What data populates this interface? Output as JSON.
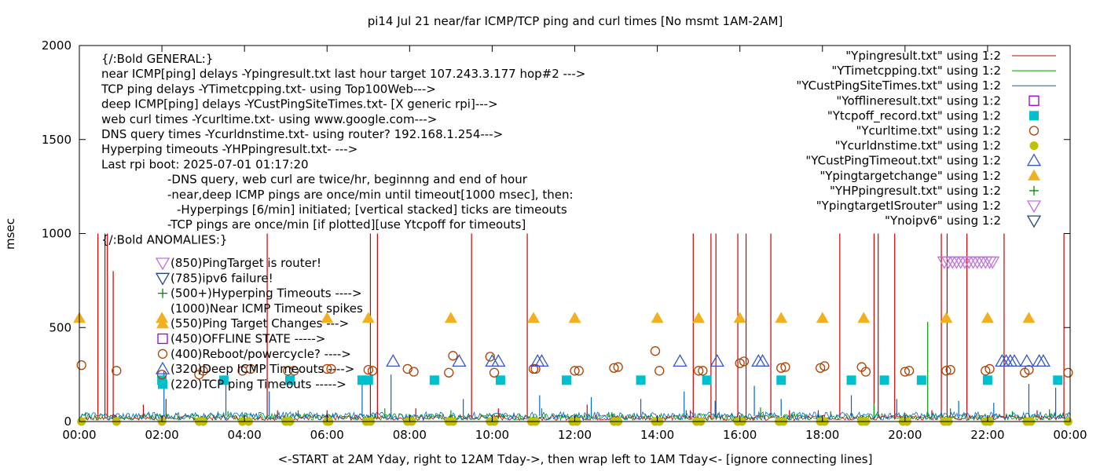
{
  "chart_data": {
    "type": "line",
    "title": "pi14 Jul 21  near/far ICMP/TCP ping and curl times [No msmt 1AM-2AM]",
    "xlabel": "<-START at 2AM Yday, right to 12AM Tday->, then wrap left to 1AM Tday<- [ignore connecting lines]",
    "ylabel": "msec",
    "xlim": [
      0,
      24
    ],
    "ylim": [
      0,
      2000
    ],
    "xticks": [
      "00:00",
      "02:00",
      "04:00",
      "06:00",
      "08:00",
      "10:00",
      "12:00",
      "14:00",
      "16:00",
      "18:00",
      "20:00",
      "22:00",
      "00:00"
    ],
    "yticks": [
      0,
      500,
      1000,
      1500,
      2000
    ],
    "grid": false,
    "legend_position": "top-right",
    "legend": [
      {
        "label": "\"Ypingresult.txt\" using 1:2",
        "marker": "line",
        "color": "#cc0000"
      },
      {
        "label": "\"YTimetcpping.txt\" using 1:2",
        "marker": "line",
        "color": "#009900"
      },
      {
        "label": "\"YCustPingSiteTimes.txt\" using 1:2",
        "marker": "line",
        "color": "#0066cc"
      },
      {
        "label": "\"Yofflineresult.txt\" using 1:2",
        "marker": "open-square",
        "color": "#9400d3"
      },
      {
        "label": "\"Ytcpoff_record.txt\" using 1:2",
        "marker": "filled-square",
        "color": "#00c0d0"
      },
      {
        "label": "\"Ycurltime.txt\" using 1:2",
        "marker": "open-circle",
        "color": "#b04000"
      },
      {
        "label": "\"Ycurldnstime.txt\" using 1:2",
        "marker": "filled-circle",
        "color": "#c0c000"
      },
      {
        "label": "\"YCustPingTimeout.txt\" using 1:2",
        "marker": "open-triangle",
        "color": "#3355cc"
      },
      {
        "label": "\"Ypingtargetchange\" using 1:2",
        "marker": "filled-triangle",
        "color": "#f0b020"
      },
      {
        "label": "\"YHPpingresult.txt\" using 1:2",
        "marker": "plus",
        "color": "#008800"
      },
      {
        "label": "\"YpingtargetISrouter\" using 1:2",
        "marker": "open-triangle-down",
        "color": "#c070e0"
      },
      {
        "label": "\"Ynoipv6\" using 1:2",
        "marker": "open-triangle-down",
        "color": "#224488"
      }
    ],
    "annotation_lines": [
      "{/:Bold GENERAL:}",
      "near ICMP[ping] delays -Ypingresult.txt last hour target 107.243.3.177 hop#2 --->",
      "TCP ping delays -YTimetcpping.txt- using Top100Web--->",
      "deep ICMP[ping] delays -YCustPingSiteTimes.txt- [X generic rpi]--->",
      "web curl times -Ycurltime.txt- using www.google.com--->",
      "DNS query times -Ycurldnstime.txt- using router? 192.168.1.254--->",
      "Hyperping timeouts -YHPpingresult.txt- --->",
      "Last rpi boot: 2025-07-01 01:17:20",
      "-DNS query, web curl are twice/hr, beginnng and end of hour",
      "-near,deep ICMP pings are once/min until timeout[1000 msec], then:",
      "-Hyperpings [6/min] initiated; [vertical stacked] ticks are timeouts",
      "-TCP pings are once/min [if plotted][use Ytcpoff for timeouts]",
      "{/:Bold ANOMALIES:}"
    ],
    "anomaly_key": [
      {
        "label": "(850)PingTarget is router!",
        "marker": "open-triangle-down",
        "color": "#c070e0"
      },
      {
        "label": "(785)ipv6 failure!",
        "marker": "open-triangle-down",
        "color": "#224488"
      },
      {
        "label": "(500+)Hyperping Timeouts ---->",
        "marker": "plus",
        "color": "#008800"
      },
      {
        "label": "(1000)Near ICMP Timeout spikes",
        "marker": "none",
        "color": "#000000"
      },
      {
        "label": "(550)Ping Target Changes --->",
        "marker": "filled-triangle",
        "color": "#f0b020"
      },
      {
        "label": "(450)OFFLINE STATE ----->",
        "marker": "open-square",
        "color": "#9400d3"
      },
      {
        "label": "(400)Reboot/powercycle? ---->",
        "marker": "open-circle",
        "color": "#b04000"
      },
      {
        "label": "(320)Deep ICMP Timeouts ---->",
        "marker": "open-triangle",
        "color": "#3355cc"
      },
      {
        "label": "(220)TCP ping Timeouts ----->",
        "marker": "filled-square",
        "color": "#00c0d0"
      }
    ],
    "series": [
      {
        "name": "\"Ypingresult.txt\" using 1:2",
        "type": "spikes",
        "color": "#cc0000",
        "baseline": 20,
        "spikes": [
          [
            0.45,
            1000
          ],
          [
            0.62,
            1000
          ],
          [
            0.68,
            1000
          ],
          [
            0.82,
            800
          ],
          [
            1.55,
            90
          ],
          [
            2.1,
            120
          ],
          [
            4.55,
            1000
          ],
          [
            4.8,
            60
          ],
          [
            6.0,
            60
          ],
          [
            7.05,
            1000
          ],
          [
            7.22,
            1000
          ],
          [
            8.15,
            70
          ],
          [
            9.5,
            1000
          ],
          [
            10.15,
            70
          ],
          [
            10.85,
            1000
          ],
          [
            12.3,
            90
          ],
          [
            14.8,
            60
          ],
          [
            14.87,
            1000
          ],
          [
            15.3,
            1000
          ],
          [
            15.42,
            1000
          ],
          [
            15.95,
            1000
          ],
          [
            16.15,
            1000
          ],
          [
            16.75,
            1000
          ],
          [
            17.2,
            60
          ],
          [
            17.9,
            60
          ],
          [
            18.42,
            1000
          ],
          [
            19.25,
            1000
          ],
          [
            19.35,
            1000
          ],
          [
            19.75,
            1000
          ],
          [
            20.65,
            60
          ],
          [
            20.88,
            1000
          ],
          [
            21.02,
            1000
          ],
          [
            21.5,
            1000
          ],
          [
            22.4,
            1000
          ],
          [
            23.2,
            60
          ],
          [
            23.85,
            1000
          ]
        ]
      },
      {
        "name": "\"YTimetcpping.txt\" using 1:2",
        "type": "spikes",
        "color": "#009900",
        "baseline": 25,
        "spikes": [
          [
            0.15,
            50
          ],
          [
            2.1,
            80
          ],
          [
            3.6,
            55
          ],
          [
            5.3,
            60
          ],
          [
            7.4,
            70
          ],
          [
            9.0,
            60
          ],
          [
            11.2,
            70
          ],
          [
            12.9,
            50
          ],
          [
            14.7,
            60
          ],
          [
            16.5,
            75
          ],
          [
            18.2,
            55
          ],
          [
            19.25,
            95
          ],
          [
            20.55,
            530
          ],
          [
            21.1,
            70
          ],
          [
            22.6,
            55
          ],
          [
            23.5,
            65
          ]
        ]
      },
      {
        "name": "\"YCustPingSiteTimes.txt\" using 1:2",
        "type": "spikes",
        "color": "#0066cc",
        "baseline": 30,
        "spikes": [
          [
            2.05,
            270
          ],
          [
            3.55,
            200
          ],
          [
            4.6,
            160
          ],
          [
            6.85,
            200
          ],
          [
            7.55,
            250
          ],
          [
            9.3,
            120
          ],
          [
            11.15,
            140
          ],
          [
            12.4,
            130
          ],
          [
            13.6,
            120
          ],
          [
            14.65,
            160
          ],
          [
            15.4,
            110
          ],
          [
            16.35,
            190
          ],
          [
            17.0,
            120
          ],
          [
            18.7,
            140
          ],
          [
            19.8,
            120
          ],
          [
            21.3,
            110
          ],
          [
            22.15,
            100
          ],
          [
            23.0,
            200
          ],
          [
            23.65,
            180
          ]
        ]
      },
      {
        "name": "\"Ytcpoff_record.txt\" using 1:2",
        "type": "filled-square",
        "color": "#00c0d0",
        "y": 220,
        "x": [
          2.0,
          3.5,
          5.1,
          6.85,
          7.0,
          8.6,
          10.2,
          11.8,
          13.6,
          15.2,
          17.0,
          18.7,
          19.5,
          20.4,
          22.0,
          23.7
        ]
      },
      {
        "name": "\"Ycurltime.txt\" using 1:2",
        "type": "open-circle",
        "color": "#b04000",
        "points": [
          [
            0.05,
            300
          ],
          [
            0.9,
            270
          ],
          [
            2.0,
            250
          ],
          [
            2.9,
            250
          ],
          [
            3.0,
            270
          ],
          [
            3.95,
            270
          ],
          [
            4.15,
            280
          ],
          [
            5.05,
            270
          ],
          [
            5.2,
            270
          ],
          [
            6.0,
            280
          ],
          [
            6.1,
            280
          ],
          [
            7.0,
            275
          ],
          [
            7.1,
            270
          ],
          [
            7.95,
            280
          ],
          [
            8.1,
            265
          ],
          [
            8.95,
            260
          ],
          [
            9.05,
            350
          ],
          [
            9.95,
            345
          ],
          [
            10.05,
            260
          ],
          [
            11.0,
            280
          ],
          [
            11.05,
            280
          ],
          [
            12.0,
            270
          ],
          [
            12.1,
            270
          ],
          [
            12.95,
            285
          ],
          [
            13.05,
            290
          ],
          [
            13.95,
            375
          ],
          [
            14.05,
            270
          ],
          [
            15.0,
            270
          ],
          [
            15.1,
            270
          ],
          [
            16.0,
            310
          ],
          [
            16.1,
            320
          ],
          [
            17.0,
            285
          ],
          [
            17.1,
            290
          ],
          [
            17.95,
            285
          ],
          [
            18.05,
            295
          ],
          [
            18.95,
            290
          ],
          [
            19.05,
            265
          ],
          [
            20.0,
            265
          ],
          [
            20.1,
            270
          ],
          [
            21.0,
            270
          ],
          [
            21.1,
            275
          ],
          [
            21.95,
            270
          ],
          [
            22.05,
            280
          ],
          [
            22.9,
            260
          ],
          [
            23.0,
            275
          ],
          [
            23.95,
            260
          ]
        ]
      },
      {
        "name": "\"Ycurldnstime.txt\" using 1:2",
        "type": "filled-circle",
        "color": "#c0c000",
        "y": 0,
        "x": [
          0.05,
          0.9,
          2.0,
          2.9,
          3.0,
          3.95,
          4.1,
          5.0,
          5.1,
          6.0,
          6.05,
          6.95,
          7.05,
          7.95,
          8.05,
          8.95,
          9.05,
          9.95,
          10.05,
          10.95,
          11.05,
          11.95,
          12.05,
          12.95,
          13.05,
          13.95,
          14.05,
          14.95,
          15.05,
          15.95,
          16.05,
          16.95,
          17.05,
          17.95,
          18.05,
          18.95,
          19.05,
          19.95,
          20.05,
          20.95,
          21.05,
          21.95,
          22.05,
          22.95,
          23.05,
          23.95
        ]
      },
      {
        "name": "\"YCustPingTimeout.txt\" using 1:2",
        "type": "open-triangle",
        "color": "#3355cc",
        "y": 320,
        "x": [
          7.6,
          9.2,
          10.0,
          10.15,
          11.1,
          11.2,
          14.55,
          15.45,
          16.45,
          16.55,
          22.35,
          22.45,
          22.55,
          22.65,
          22.95,
          23.25,
          23.35
        ]
      },
      {
        "name": "\"Ypingtargetchange\" using 1:2",
        "type": "filled-triangle",
        "color": "#f0b020",
        "y": 550,
        "x": [
          0.0,
          2.0,
          6.0,
          7.0,
          9.0,
          11.0,
          12.0,
          14.0,
          15.0,
          16.0,
          17.0,
          18.0,
          19.0,
          21.0,
          22.0,
          23.0
        ]
      },
      {
        "name": "\"YHPpingresult.txt\" using 1:2",
        "type": "plus",
        "color": "#008800",
        "y": 500,
        "x": []
      },
      {
        "name": "\"YpingtargetISrouter\" using 1:2",
        "type": "open-triangle-down",
        "color": "#c070e0",
        "y": 850,
        "x": [
          20.95,
          21.05,
          21.15,
          21.25,
          21.35,
          21.45,
          21.55,
          21.65,
          21.75,
          21.85,
          21.95,
          22.05,
          22.12
        ]
      },
      {
        "name": "\"Ynoipv6\" using 1:2",
        "type": "open-triangle-down",
        "color": "#224488",
        "y": 785,
        "x": []
      }
    ]
  }
}
